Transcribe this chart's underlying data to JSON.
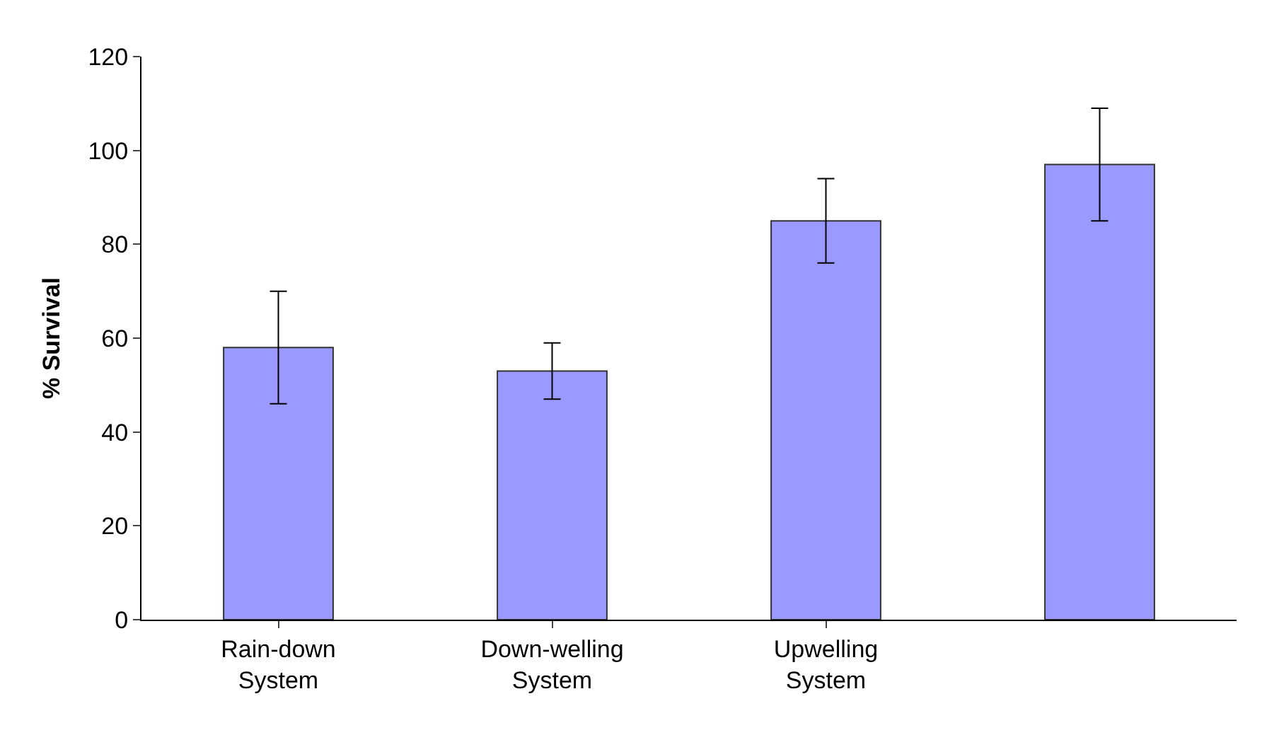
{
  "chart_data": {
    "type": "bar",
    "ylabel": "% Survival",
    "categories": [
      "Rain-down\nSystem",
      "Down-welling\nSystem",
      "Upwelling\nSystem",
      null
    ],
    "values": [
      58,
      53,
      85,
      97
    ],
    "errors": [
      12,
      6,
      9,
      12
    ],
    "color": "#9999ff",
    "ylim": [
      0,
      120
    ],
    "yticks": [
      0,
      20,
      40,
      60,
      80,
      100,
      120
    ],
    "legend": false
  }
}
